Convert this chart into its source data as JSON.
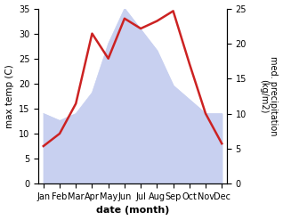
{
  "months": [
    "Jan",
    "Feb",
    "Mar",
    "Apr",
    "May",
    "Jun",
    "Jul",
    "Aug",
    "Sep",
    "Oct",
    "Nov",
    "Dec"
  ],
  "month_positions": [
    0,
    1,
    2,
    3,
    4,
    5,
    6,
    7,
    8,
    9,
    10,
    11
  ],
  "temperature": [
    7.5,
    10,
    16,
    30,
    25,
    33,
    31,
    32.5,
    34.5,
    24,
    14,
    8
  ],
  "precipitation": [
    10,
    9,
    10,
    13,
    20,
    25,
    22,
    19,
    14,
    12,
    10,
    10
  ],
  "temp_color": "#cc2222",
  "precip_fill_color": "#c8d0f0",
  "temp_ylim": [
    0,
    35
  ],
  "precip_ylim": [
    0,
    25
  ],
  "temp_yticks": [
    0,
    5,
    10,
    15,
    20,
    25,
    30,
    35
  ],
  "precip_yticks": [
    0,
    5,
    10,
    15,
    20,
    25
  ],
  "xlabel": "date (month)",
  "ylabel_left": "max temp (C)",
  "ylabel_right": "med. precipitation\n(kg/m2)",
  "linewidth": 1.8
}
